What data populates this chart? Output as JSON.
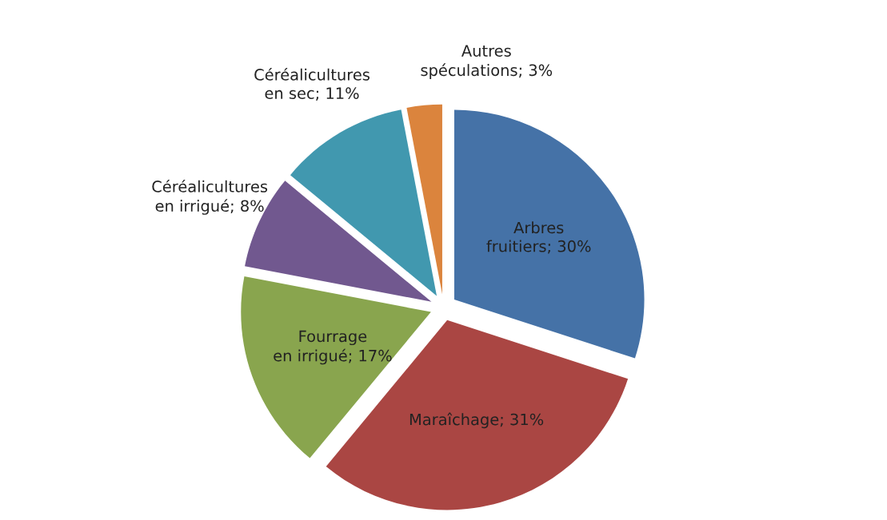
{
  "chart_data": {
    "type": "pie",
    "categories": [
      "Arbres fruitiers",
      "Maraîchage",
      "Fourrage en irrigué",
      "Céréalicultures en irrigué",
      "Céréalicultures en sec",
      "Autres spéculations"
    ],
    "values": [
      30,
      31,
      17,
      8,
      11,
      3
    ],
    "colors": [
      "#4572a7",
      "#aa4643",
      "#89a54e",
      "#71588f",
      "#4198af",
      "#db843d"
    ],
    "value_labels": [
      "30%",
      "31%",
      "17%",
      "8%",
      "11%",
      "3%"
    ],
    "legend": false
  }
}
